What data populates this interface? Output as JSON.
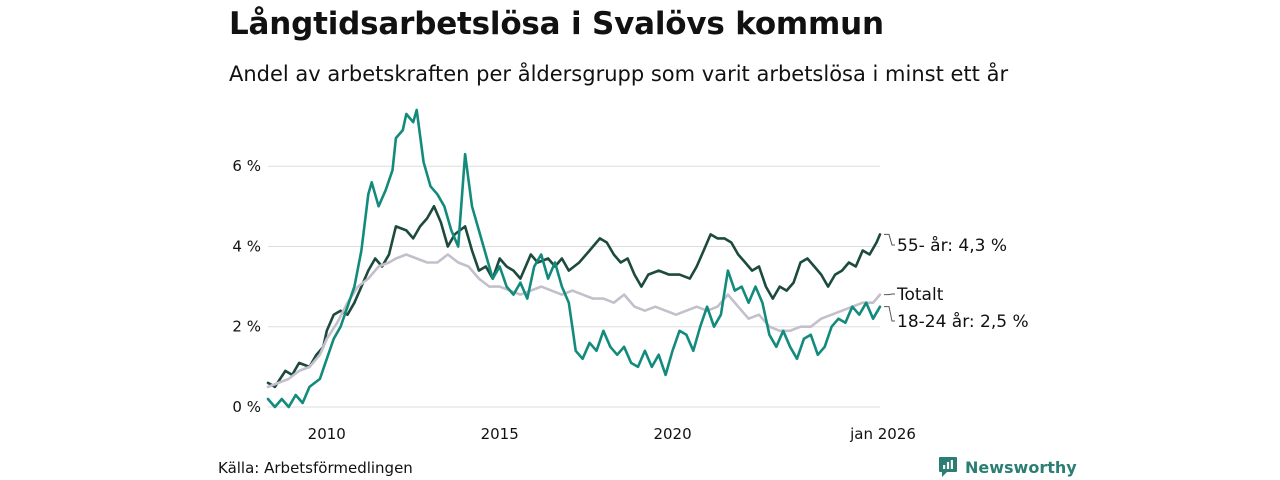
{
  "title": "Långtidsarbetslösa i Svalövs kommun",
  "subtitle": "Andel av arbetskraften per åldersgrupp som varit arbetslösa i minst ett år",
  "source": "Källa: Arbetsförmedlingen",
  "brand": {
    "name": "Newsworthy",
    "icon": "newsworthy-logo-icon"
  },
  "colors": {
    "older": "#1d4a3e",
    "young": "#138b7c",
    "total": "#c3c0cb",
    "grid": "#dddddd",
    "brand": "#2b7e74"
  },
  "chart_data": {
    "type": "line",
    "title": "Långtidsarbetslösa i Svalövs kommun",
    "xlabel": "",
    "ylabel": "",
    "xlim": [
      2008.3,
      2026.0
    ],
    "ylim": [
      0,
      7.6
    ],
    "yticks": [
      {
        "value": 0,
        "label": "0 %"
      },
      {
        "value": 2,
        "label": "2 %"
      },
      {
        "value": 4,
        "label": "4 %"
      },
      {
        "value": 6,
        "label": "6 %"
      }
    ],
    "xticks": [
      {
        "value": 2010,
        "label": "2010"
      },
      {
        "value": 2015,
        "label": "2015"
      },
      {
        "value": 2020,
        "label": "2020"
      },
      {
        "value": 2026,
        "label": "jan 2026"
      }
    ],
    "grid": true,
    "series": [
      {
        "name": "55- år",
        "label": "55- år: 4,3 %",
        "color": "#1d4a3e",
        "points": [
          [
            2008.3,
            0.6
          ],
          [
            2008.5,
            0.5
          ],
          [
            2008.8,
            0.9
          ],
          [
            2009.0,
            0.8
          ],
          [
            2009.2,
            1.1
          ],
          [
            2009.5,
            1.0
          ],
          [
            2009.7,
            1.3
          ],
          [
            2009.9,
            1.5
          ],
          [
            2010.0,
            1.9
          ],
          [
            2010.2,
            2.3
          ],
          [
            2010.4,
            2.4
          ],
          [
            2010.6,
            2.3
          ],
          [
            2010.8,
            2.6
          ],
          [
            2011.0,
            3.0
          ],
          [
            2011.2,
            3.4
          ],
          [
            2011.4,
            3.7
          ],
          [
            2011.6,
            3.5
          ],
          [
            2011.8,
            3.8
          ],
          [
            2012.0,
            4.5
          ],
          [
            2012.3,
            4.4
          ],
          [
            2012.5,
            4.2
          ],
          [
            2012.7,
            4.5
          ],
          [
            2012.9,
            4.7
          ],
          [
            2013.1,
            5.0
          ],
          [
            2013.3,
            4.6
          ],
          [
            2013.5,
            4.0
          ],
          [
            2013.7,
            4.3
          ],
          [
            2014.0,
            4.5
          ],
          [
            2014.2,
            3.9
          ],
          [
            2014.4,
            3.4
          ],
          [
            2014.6,
            3.5
          ],
          [
            2014.8,
            3.2
          ],
          [
            2015.0,
            3.7
          ],
          [
            2015.2,
            3.5
          ],
          [
            2015.4,
            3.4
          ],
          [
            2015.6,
            3.2
          ],
          [
            2015.9,
            3.8
          ],
          [
            2016.1,
            3.6
          ],
          [
            2016.4,
            3.7
          ],
          [
            2016.6,
            3.5
          ],
          [
            2016.8,
            3.7
          ],
          [
            2017.0,
            3.4
          ],
          [
            2017.3,
            3.6
          ],
          [
            2017.6,
            3.9
          ],
          [
            2017.9,
            4.2
          ],
          [
            2018.1,
            4.1
          ],
          [
            2018.3,
            3.8
          ],
          [
            2018.5,
            3.6
          ],
          [
            2018.7,
            3.7
          ],
          [
            2018.9,
            3.3
          ],
          [
            2019.1,
            3.0
          ],
          [
            2019.3,
            3.3
          ],
          [
            2019.6,
            3.4
          ],
          [
            2019.9,
            3.3
          ],
          [
            2020.2,
            3.3
          ],
          [
            2020.5,
            3.2
          ],
          [
            2020.7,
            3.5
          ],
          [
            2020.9,
            3.9
          ],
          [
            2021.1,
            4.3
          ],
          [
            2021.3,
            4.2
          ],
          [
            2021.5,
            4.2
          ],
          [
            2021.7,
            4.1
          ],
          [
            2021.9,
            3.8
          ],
          [
            2022.1,
            3.6
          ],
          [
            2022.3,
            3.4
          ],
          [
            2022.5,
            3.5
          ],
          [
            2022.7,
            3.0
          ],
          [
            2022.9,
            2.7
          ],
          [
            2023.1,
            3.0
          ],
          [
            2023.3,
            2.9
          ],
          [
            2023.5,
            3.1
          ],
          [
            2023.7,
            3.6
          ],
          [
            2023.9,
            3.7
          ],
          [
            2024.1,
            3.5
          ],
          [
            2024.3,
            3.3
          ],
          [
            2024.5,
            3.0
          ],
          [
            2024.7,
            3.3
          ],
          [
            2024.9,
            3.4
          ],
          [
            2025.1,
            3.6
          ],
          [
            2025.3,
            3.5
          ],
          [
            2025.5,
            3.9
          ],
          [
            2025.7,
            3.8
          ],
          [
            2025.9,
            4.1
          ],
          [
            2026.0,
            4.3
          ]
        ]
      },
      {
        "name": "Totalt",
        "label": "Totalt",
        "color": "#c3c0cb",
        "points": [
          [
            2008.3,
            0.5
          ],
          [
            2008.6,
            0.6
          ],
          [
            2008.9,
            0.7
          ],
          [
            2009.2,
            0.9
          ],
          [
            2009.5,
            1.0
          ],
          [
            2009.8,
            1.3
          ],
          [
            2010.0,
            1.7
          ],
          [
            2010.3,
            2.1
          ],
          [
            2010.6,
            2.6
          ],
          [
            2010.9,
            3.0
          ],
          [
            2011.2,
            3.2
          ],
          [
            2011.5,
            3.5
          ],
          [
            2011.8,
            3.6
          ],
          [
            2012.0,
            3.7
          ],
          [
            2012.3,
            3.8
          ],
          [
            2012.6,
            3.7
          ],
          [
            2012.9,
            3.6
          ],
          [
            2013.2,
            3.6
          ],
          [
            2013.5,
            3.8
          ],
          [
            2013.8,
            3.6
          ],
          [
            2014.1,
            3.5
          ],
          [
            2014.4,
            3.2
          ],
          [
            2014.7,
            3.0
          ],
          [
            2015.0,
            3.0
          ],
          [
            2015.3,
            2.9
          ],
          [
            2015.6,
            2.8
          ],
          [
            2015.9,
            2.9
          ],
          [
            2016.2,
            3.0
          ],
          [
            2016.5,
            2.9
          ],
          [
            2016.8,
            2.8
          ],
          [
            2017.1,
            2.9
          ],
          [
            2017.4,
            2.8
          ],
          [
            2017.7,
            2.7
          ],
          [
            2018.0,
            2.7
          ],
          [
            2018.3,
            2.6
          ],
          [
            2018.6,
            2.8
          ],
          [
            2018.9,
            2.5
          ],
          [
            2019.2,
            2.4
          ],
          [
            2019.5,
            2.5
          ],
          [
            2019.8,
            2.4
          ],
          [
            2020.1,
            2.3
          ],
          [
            2020.4,
            2.4
          ],
          [
            2020.7,
            2.5
          ],
          [
            2021.0,
            2.4
          ],
          [
            2021.3,
            2.5
          ],
          [
            2021.6,
            2.8
          ],
          [
            2021.9,
            2.5
          ],
          [
            2022.2,
            2.2
          ],
          [
            2022.5,
            2.3
          ],
          [
            2022.8,
            2.0
          ],
          [
            2023.1,
            1.9
          ],
          [
            2023.4,
            1.9
          ],
          [
            2023.7,
            2.0
          ],
          [
            2024.0,
            2.0
          ],
          [
            2024.3,
            2.2
          ],
          [
            2024.6,
            2.3
          ],
          [
            2024.9,
            2.4
          ],
          [
            2025.2,
            2.5
          ],
          [
            2025.5,
            2.6
          ],
          [
            2025.8,
            2.6
          ],
          [
            2026.0,
            2.8
          ]
        ]
      },
      {
        "name": "18-24 år",
        "label": "18-24 år: 2,5 %",
        "color": "#138b7c",
        "points": [
          [
            2008.3,
            0.2
          ],
          [
            2008.5,
            0.0
          ],
          [
            2008.7,
            0.2
          ],
          [
            2008.9,
            0.0
          ],
          [
            2009.1,
            0.3
          ],
          [
            2009.3,
            0.1
          ],
          [
            2009.5,
            0.5
          ],
          [
            2009.8,
            0.7
          ],
          [
            2010.0,
            1.2
          ],
          [
            2010.2,
            1.7
          ],
          [
            2010.4,
            2.0
          ],
          [
            2010.6,
            2.5
          ],
          [
            2010.8,
            3.0
          ],
          [
            2011.0,
            3.9
          ],
          [
            2011.2,
            5.3
          ],
          [
            2011.3,
            5.6
          ],
          [
            2011.5,
            5.0
          ],
          [
            2011.7,
            5.4
          ],
          [
            2011.9,
            5.9
          ],
          [
            2012.0,
            6.7
          ],
          [
            2012.2,
            6.9
          ],
          [
            2012.3,
            7.3
          ],
          [
            2012.5,
            7.1
          ],
          [
            2012.6,
            7.4
          ],
          [
            2012.8,
            6.1
          ],
          [
            2013.0,
            5.5
          ],
          [
            2013.2,
            5.3
          ],
          [
            2013.4,
            5.0
          ],
          [
            2013.6,
            4.4
          ],
          [
            2013.8,
            4.0
          ],
          [
            2014.0,
            6.3
          ],
          [
            2014.2,
            5.0
          ],
          [
            2014.4,
            4.4
          ],
          [
            2014.6,
            3.8
          ],
          [
            2014.8,
            3.2
          ],
          [
            2015.0,
            3.5
          ],
          [
            2015.2,
            3.0
          ],
          [
            2015.4,
            2.8
          ],
          [
            2015.6,
            3.1
          ],
          [
            2015.8,
            2.7
          ],
          [
            2016.0,
            3.5
          ],
          [
            2016.2,
            3.8
          ],
          [
            2016.4,
            3.2
          ],
          [
            2016.6,
            3.6
          ],
          [
            2016.8,
            3.0
          ],
          [
            2017.0,
            2.6
          ],
          [
            2017.1,
            2.0
          ],
          [
            2017.2,
            1.4
          ],
          [
            2017.4,
            1.2
          ],
          [
            2017.6,
            1.6
          ],
          [
            2017.8,
            1.4
          ],
          [
            2018.0,
            1.9
          ],
          [
            2018.2,
            1.5
          ],
          [
            2018.4,
            1.3
          ],
          [
            2018.6,
            1.5
          ],
          [
            2018.8,
            1.1
          ],
          [
            2019.0,
            1.0
          ],
          [
            2019.2,
            1.4
          ],
          [
            2019.4,
            1.0
          ],
          [
            2019.6,
            1.3
          ],
          [
            2019.8,
            0.8
          ],
          [
            2020.0,
            1.4
          ],
          [
            2020.2,
            1.9
          ],
          [
            2020.4,
            1.8
          ],
          [
            2020.6,
            1.4
          ],
          [
            2020.8,
            2.0
          ],
          [
            2021.0,
            2.5
          ],
          [
            2021.2,
            2.0
          ],
          [
            2021.4,
            2.3
          ],
          [
            2021.6,
            3.4
          ],
          [
            2021.8,
            2.9
          ],
          [
            2022.0,
            3.0
          ],
          [
            2022.2,
            2.6
          ],
          [
            2022.4,
            3.0
          ],
          [
            2022.6,
            2.6
          ],
          [
            2022.8,
            1.8
          ],
          [
            2023.0,
            1.5
          ],
          [
            2023.2,
            1.9
          ],
          [
            2023.4,
            1.5
          ],
          [
            2023.6,
            1.2
          ],
          [
            2023.8,
            1.7
          ],
          [
            2024.0,
            1.8
          ],
          [
            2024.2,
            1.3
          ],
          [
            2024.4,
            1.5
          ],
          [
            2024.6,
            2.0
          ],
          [
            2024.8,
            2.2
          ],
          [
            2025.0,
            2.1
          ],
          [
            2025.2,
            2.5
          ],
          [
            2025.4,
            2.3
          ],
          [
            2025.6,
            2.6
          ],
          [
            2025.8,
            2.2
          ],
          [
            2026.0,
            2.5
          ]
        ]
      }
    ]
  }
}
